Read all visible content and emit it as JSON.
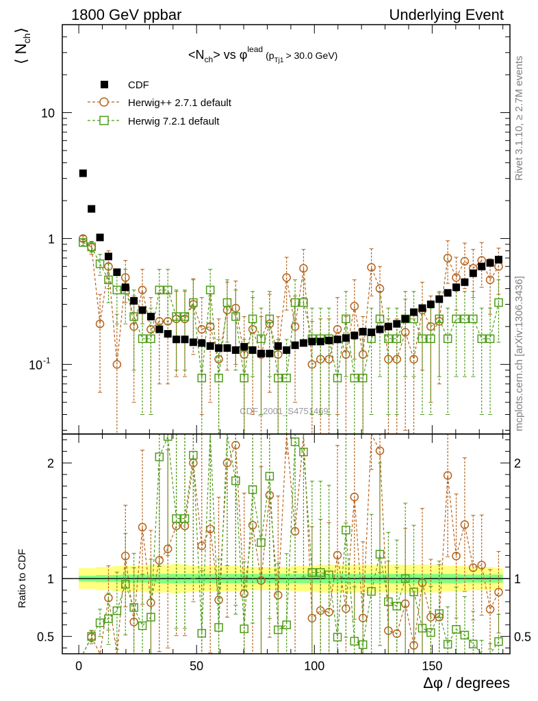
{
  "header": {
    "left": "1800 GeV ppbar",
    "right": "Underlying Event"
  },
  "side_text": {
    "rivet": "Rivet 3.1.10, ≥ 2.7M events",
    "mcplots": "mcplots.cern.ch [arXiv:1306.3436]"
  },
  "watermark": "CDF_2001_S4751469",
  "chart_data": {
    "type": "scatter",
    "title": {
      "lhs": "<N",
      "lhs_sub": "ch",
      "vs": "> vs φ",
      "vs_sup": "lead",
      "cut_open": "(p",
      "cut_sub": "Tj1",
      "cut_close": "> 30.0 GeV)"
    },
    "xlabel": "Δφ / degrees",
    "ylabel_main": "⟨ N",
    "ylabel_main_sub": "ch",
    "ylabel_main_close": "⟩",
    "ylabel_ratio": "Ratio to CDF",
    "xlim": [
      -7,
      183
    ],
    "ylim_main": [
      0.028,
      50
    ],
    "yscale_main": "log",
    "ylim_ratio": [
      0.35,
      2.25
    ],
    "x_ticks": [
      0,
      50,
      100,
      150
    ],
    "x_tick_labels": [
      "0",
      "50",
      "100",
      "150"
    ],
    "main_y_ticks": [
      0.1,
      1,
      10
    ],
    "main_y_tick_labels": [
      "10^-1",
      "1",
      "10"
    ],
    "ratio_y_ticks": [
      0.5,
      1,
      2
    ],
    "ratio_y_tick_labels": [
      "0.5",
      "1",
      "2"
    ],
    "legend": [
      "CDF",
      "Herwig++ 2.7.1 default",
      "Herwig 7.2.1 default"
    ],
    "series": [
      {
        "name": "CDF",
        "color": "#000000",
        "marker": "filled-square",
        "x": [
          1.8,
          5.4,
          9,
          12.6,
          16.2,
          19.8,
          23.4,
          27,
          30.6,
          34.2,
          37.8,
          41.4,
          45,
          48.6,
          52.2,
          55.8,
          59.4,
          63,
          66.6,
          70.2,
          73.8,
          77.4,
          81,
          84.6,
          88.2,
          91.8,
          95.4,
          99,
          102.6,
          106.2,
          109.8,
          113.4,
          117,
          120.6,
          124.2,
          127.8,
          131.4,
          135,
          138.6,
          142.2,
          145.8,
          149.4,
          153,
          156.6,
          160.2,
          163.8,
          167.4,
          171,
          174.6,
          178.2
        ],
        "y": [
          3.3,
          1.72,
          1.02,
          0.72,
          0.54,
          0.41,
          0.32,
          0.27,
          0.24,
          0.19,
          0.175,
          0.158,
          0.158,
          0.15,
          0.148,
          0.14,
          0.135,
          0.135,
          0.13,
          0.138,
          0.13,
          0.122,
          0.122,
          0.14,
          0.13,
          0.142,
          0.148,
          0.152,
          0.152,
          0.155,
          0.158,
          0.162,
          0.17,
          0.182,
          0.18,
          0.19,
          0.2,
          0.21,
          0.23,
          0.26,
          0.28,
          0.3,
          0.33,
          0.37,
          0.41,
          0.45,
          0.53,
          0.6,
          0.64,
          0.68
        ],
        "error": [
          0.06,
          0.04,
          0.03,
          0.02,
          0.015,
          0.012,
          0.01,
          0.008,
          0.008,
          0.006,
          0.006,
          0.005,
          0.005,
          0.005,
          0.005,
          0.005,
          0.005,
          0.005,
          0.005,
          0.005,
          0.005,
          0.005,
          0.005,
          0.005,
          0.005,
          0.005,
          0.005,
          0.005,
          0.005,
          0.005,
          0.005,
          0.005,
          0.006,
          0.006,
          0.006,
          0.006,
          0.006,
          0.007,
          0.007,
          0.008,
          0.008,
          0.009,
          0.01,
          0.011,
          0.012,
          0.014,
          0.016,
          0.018,
          0.02,
          0.022
        ],
        "band_rel_stat": [
          0.025,
          0.025,
          0.03,
          0.03,
          0.03,
          0.035,
          0.035,
          0.035,
          0.035,
          0.04,
          0.04,
          0.04,
          0.04,
          0.04,
          0.04,
          0.04,
          0.04,
          0.04,
          0.04,
          0.04,
          0.04,
          0.04,
          0.04,
          0.04,
          0.04,
          0.04,
          0.04,
          0.04,
          0.04,
          0.04,
          0.04,
          0.04,
          0.04,
          0.04,
          0.04,
          0.04,
          0.04,
          0.04,
          0.04,
          0.04,
          0.04,
          0.04,
          0.04,
          0.04,
          0.04,
          0.035,
          0.035,
          0.035,
          0.035,
          0.035
        ],
        "band_rel_tot": [
          0.09,
          0.09,
          0.1,
          0.1,
          0.11,
          0.11,
          0.11,
          0.11,
          0.12,
          0.12,
          0.12,
          0.13,
          0.12,
          0.11,
          0.11,
          0.11,
          0.11,
          0.11,
          0.11,
          0.1,
          0.1,
          0.1,
          0.1,
          0.1,
          0.1,
          0.11,
          0.11,
          0.11,
          0.12,
          0.12,
          0.12,
          0.12,
          0.12,
          0.12,
          0.12,
          0.12,
          0.12,
          0.12,
          0.12,
          0.12,
          0.12,
          0.12,
          0.12,
          0.11,
          0.11,
          0.11,
          0.1,
          0.1,
          0.1,
          0.09
        ]
      },
      {
        "name": "Herwig++ 2.7.1 default",
        "color": "#b5611a",
        "marker": "open-circle",
        "x": [
          1.8,
          5.4,
          9,
          12.6,
          16.2,
          19.8,
          23.4,
          27,
          30.6,
          34.2,
          37.8,
          41.4,
          45,
          48.6,
          52.2,
          55.8,
          59.4,
          63,
          66.6,
          70.2,
          73.8,
          77.4,
          81,
          84.6,
          88.2,
          91.8,
          95.4,
          99,
          102.6,
          106.2,
          109.8,
          113.4,
          117,
          120.6,
          124.2,
          127.8,
          131.4,
          135,
          138.6,
          142.2,
          145.8,
          149.4,
          153,
          156.6,
          160.2,
          163.8,
          167.4,
          171,
          174.6,
          178.2
        ],
        "y": [
          1.0,
          0.85,
          0.21,
          0.6,
          0.1,
          0.49,
          0.2,
          0.39,
          0.19,
          0.22,
          0.22,
          0.23,
          0.23,
          0.3,
          0.19,
          0.2,
          0.11,
          0.27,
          0.28,
          0.12,
          0.19,
          0.12,
          0.21,
          0.12,
          0.49,
          0.2,
          0.58,
          0.1,
          0.11,
          0.11,
          0.19,
          0.12,
          0.29,
          0.12,
          0.59,
          0.4,
          0.11,
          0.11,
          0.18,
          0.11,
          0.27,
          0.2,
          0.22,
          0.7,
          0.49,
          0.66,
          0.58,
          0.67,
          0.47,
          0.6
        ],
        "error": [
          0.05,
          0.1,
          0.15,
          0.2,
          0.15,
          0.18,
          0.15,
          0.18,
          0.15,
          0.15,
          0.15,
          0.15,
          0.15,
          0.18,
          0.15,
          0.15,
          0.12,
          0.18,
          0.18,
          0.12,
          0.15,
          0.12,
          0.15,
          0.12,
          0.22,
          0.15,
          0.24,
          0.12,
          0.12,
          0.12,
          0.15,
          0.12,
          0.18,
          0.12,
          0.24,
          0.2,
          0.12,
          0.12,
          0.15,
          0.12,
          0.18,
          0.15,
          0.15,
          0.26,
          0.22,
          0.26,
          0.24,
          0.26,
          0.22,
          0.24
        ]
      },
      {
        "name": "Herwig 7.2.1 default",
        "color": "#4c9b18",
        "marker": "open-square",
        "x": [
          1.8,
          5.4,
          9,
          12.6,
          16.2,
          19.8,
          23.4,
          27,
          30.6,
          34.2,
          37.8,
          41.4,
          45,
          48.6,
          52.2,
          55.8,
          59.4,
          63,
          66.6,
          70.2,
          73.8,
          77.4,
          81,
          84.6,
          88.2,
          91.8,
          95.4,
          99,
          102.6,
          106.2,
          109.8,
          113.4,
          117,
          120.6,
          124.2,
          127.8,
          131.4,
          135,
          138.6,
          142.2,
          145.8,
          149.4,
          153,
          156.6,
          160.2,
          163.8,
          167.4,
          171,
          174.6,
          178.2
        ],
        "y": [
          0.93,
          0.86,
          0.63,
          0.47,
          0.39,
          0.39,
          0.24,
          0.16,
          0.16,
          0.39,
          0.39,
          0.24,
          0.24,
          0.31,
          0.078,
          0.39,
          0.078,
          0.31,
          0.24,
          0.078,
          0.23,
          0.16,
          0.23,
          0.078,
          0.078,
          0.31,
          0.31,
          0.16,
          0.16,
          0.16,
          0.078,
          0.23,
          0.078,
          0.078,
          0.16,
          0.23,
          0.16,
          0.16,
          0.23,
          0.23,
          0.16,
          0.16,
          0.23,
          0.16,
          0.23,
          0.23,
          0.23,
          0.16,
          0.16,
          0.31
        ],
        "error": [
          0.05,
          0.08,
          0.12,
          0.16,
          0.18,
          0.18,
          0.15,
          0.12,
          0.12,
          0.18,
          0.18,
          0.15,
          0.15,
          0.16,
          0.08,
          0.18,
          0.08,
          0.16,
          0.15,
          0.08,
          0.15,
          0.12,
          0.15,
          0.08,
          0.08,
          0.16,
          0.16,
          0.12,
          0.12,
          0.12,
          0.08,
          0.15,
          0.08,
          0.08,
          0.12,
          0.15,
          0.12,
          0.12,
          0.15,
          0.15,
          0.12,
          0.12,
          0.15,
          0.12,
          0.15,
          0.15,
          0.15,
          0.12,
          0.12,
          0.16
        ]
      }
    ]
  }
}
